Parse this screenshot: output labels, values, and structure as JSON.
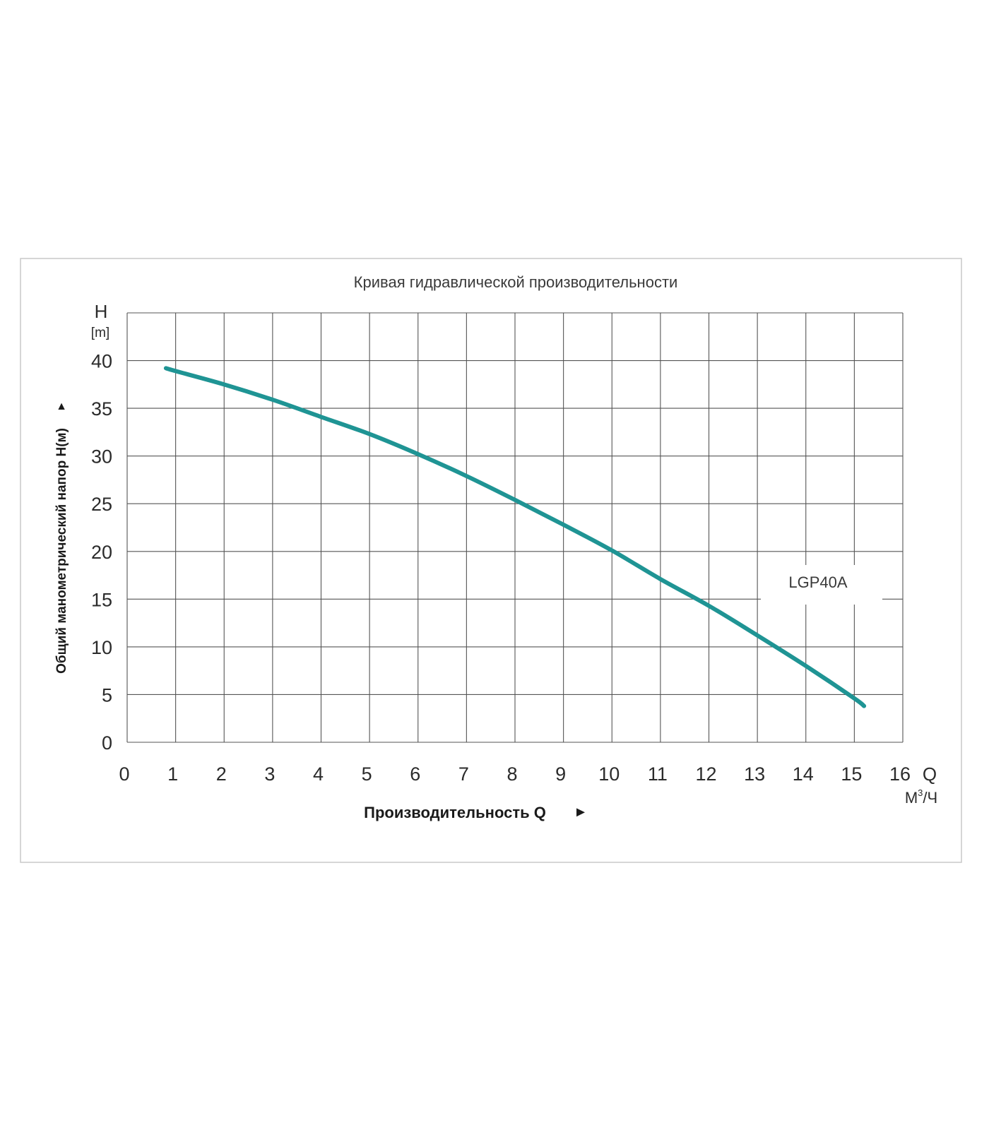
{
  "chart_data": {
    "type": "line",
    "title": "Кривая гидравлической производительности",
    "ylabel": "Общий манометрический напор Н(м)",
    "xlabel": "Производительность Q",
    "y_axis_symbol": "H",
    "y_axis_unit": "[m]",
    "x_axis_symbol": "Q",
    "x_axis_unit_base": "М",
    "x_axis_unit_sup": "3",
    "x_axis_unit_tail": "/Ч",
    "y_arrow": "▲",
    "x_arrow": "►",
    "xlim": [
      0,
      16
    ],
    "ylim": [
      0,
      45
    ],
    "xticks": [
      0,
      1,
      2,
      3,
      4,
      5,
      6,
      7,
      8,
      9,
      10,
      11,
      12,
      13,
      14,
      15,
      16
    ],
    "yticks": [
      0,
      5,
      10,
      15,
      20,
      25,
      30,
      35,
      40
    ],
    "grid": true,
    "series": [
      {
        "name": "LGP40A",
        "color": "#1f9494",
        "x": [
          0.8,
          1,
          2,
          3,
          4,
          5,
          6,
          7,
          8,
          9,
          10,
          11,
          12,
          13,
          14,
          15,
          15.2
        ],
        "y": [
          39.2,
          38.9,
          37.5,
          35.9,
          34.1,
          32.3,
          30.2,
          27.9,
          25.4,
          22.8,
          20.1,
          17.1,
          14.3,
          11.2,
          8.0,
          4.6,
          3.8
        ]
      }
    ]
  }
}
